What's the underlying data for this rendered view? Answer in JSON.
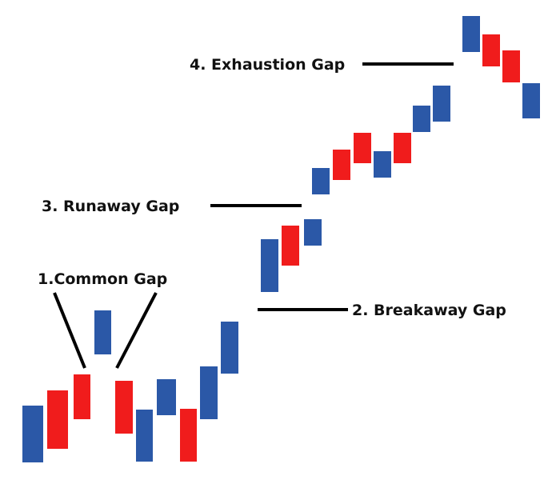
{
  "labels": {
    "common": "1.Common Gap",
    "breakaway": "2. Breakaway Gap",
    "runaway": "3. Runaway Gap",
    "exhaustion": "4. Exhaustion Gap"
  },
  "colors": {
    "up": "#2b58a7",
    "down": "#f01c1c",
    "line": "#000000"
  },
  "candles": [
    {
      "color": "up"
    },
    {
      "color": "down"
    },
    {
      "color": "down"
    },
    {
      "color": "up"
    },
    {
      "color": "down"
    },
    {
      "color": "up"
    },
    {
      "color": "up"
    },
    {
      "color": "down"
    },
    {
      "color": "up"
    },
    {
      "color": "up"
    },
    {
      "color": "up"
    },
    {
      "color": "down"
    },
    {
      "color": "up"
    },
    {
      "color": "up"
    },
    {
      "color": "down"
    },
    {
      "color": "down"
    },
    {
      "color": "up"
    },
    {
      "color": "down"
    },
    {
      "color": "up"
    },
    {
      "color": "up"
    },
    {
      "color": "up"
    },
    {
      "color": "down"
    },
    {
      "color": "down"
    },
    {
      "color": "up"
    }
  ]
}
